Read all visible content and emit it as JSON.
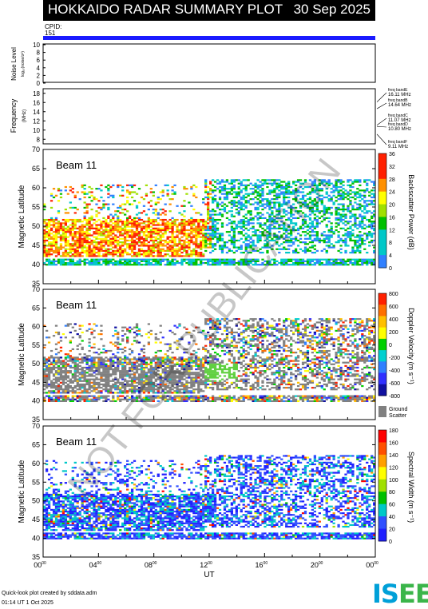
{
  "header": {
    "title": "HOKKAIDO RADAR SUMMARY PLOT",
    "date": "30 Sep 2025"
  },
  "cpid": {
    "label": "CPID:",
    "value": "151"
  },
  "noise_panel": {
    "ylabel": "Noise Level",
    "ylabel_small": "log₁₀(noise/σ²)",
    "yticks": [
      "10",
      "8",
      "6",
      "4",
      "2",
      "0"
    ]
  },
  "freq_panel": {
    "ylabel": "Frequency",
    "units": "(MHz)",
    "yticks": [
      "18",
      "16",
      "14",
      "12",
      "10",
      "8"
    ],
    "bands": [
      {
        "name": "freq bandE",
        "value": "16.11 MHz"
      },
      {
        "name": "freq bandB",
        "value": "14.64 MHz"
      },
      {
        "name": "freq bandC",
        "value": "11.07 MHz"
      },
      {
        "name": "freq bandD",
        "value": "10.80 MHz"
      },
      {
        "name": "freq bandF",
        "value": "9.11 MHz"
      }
    ]
  },
  "beam_label": "Beam 11",
  "lat_label": "Magnetic Latitude",
  "lat_ticks": [
    "70",
    "65",
    "60",
    "55",
    "50",
    "45",
    "40",
    "35"
  ],
  "power_cbar": {
    "title": "Backscatter Power (dB)",
    "ticks": [
      "36",
      "32",
      "28",
      "24",
      "20",
      "16",
      "12",
      "8",
      "4",
      "0"
    ]
  },
  "vel_cbar": {
    "title": "Doppler Velocity (m s⁻¹)",
    "ticks": [
      "800",
      "600",
      "400",
      "200",
      "0",
      "-200",
      "-400",
      "-600",
      "-800"
    ],
    "ground": "Ground",
    "scatter": "Scatter"
  },
  "width_cbar": {
    "title": "Spectral Width (m s⁻¹)",
    "ticks": [
      "180",
      "160",
      "140",
      "120",
      "100",
      "80",
      "60",
      "40",
      "20",
      "0"
    ]
  },
  "x_ticks": [
    "00",
    "04",
    "08",
    "12",
    "16",
    "20",
    "00"
  ],
  "x_tick_sup": "00",
  "xlabel": "UT",
  "watermark": "NOT FOR PUBLICATION",
  "footer": {
    "line1": "Quick-look plot created by sddata.adm",
    "line2": "01:14 UT 1 Oct 2025"
  },
  "logo": {
    "text1": "IS",
    "text2": "E",
    "text3": "E"
  },
  "colors": {
    "cpid_bar": "#1a1aff",
    "ground_scatter": "#808080"
  },
  "chart_data": {
    "type": "heatmap",
    "title": "HOKKAIDO RADAR SUMMARY PLOT",
    "xlabel": "UT",
    "ylabel": "Magnetic Latitude",
    "xlim": [
      0,
      24
    ],
    "ylim": [
      35,
      70
    ],
    "panels": [
      "Noise Level",
      "Frequency",
      "Backscatter Power (dB)",
      "Doppler Velocity (m s⁻¹)",
      "Spectral Width (m s⁻¹)"
    ],
    "power_range": [
      0,
      36
    ],
    "velocity_range": [
      -800,
      800
    ],
    "width_range": [
      0,
      180
    ],
    "frequency_bands_mhz": [
      16.11,
      14.64,
      11.07,
      10.8,
      9.11
    ]
  }
}
